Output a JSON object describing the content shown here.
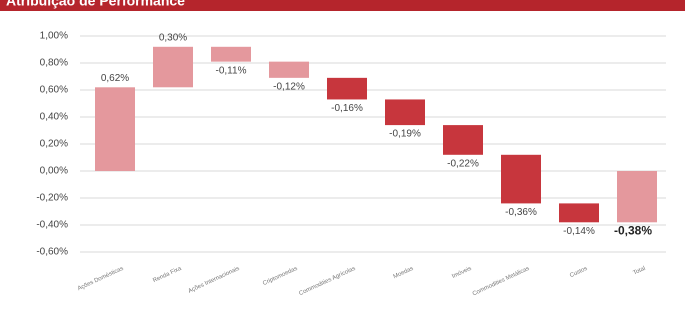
{
  "chart_data": {
    "type": "waterfall",
    "title": "Atribuição de Performance",
    "categories": [
      "Ações Domésticas",
      "Renda Fixa",
      "Ações Internacionais",
      "Criptomoedas",
      "Commodities Agrícolas",
      "Moedas",
      "Imóveis",
      "Commodities Metálicas",
      "Custos",
      "Total"
    ],
    "values": [
      0.62,
      0.3,
      -0.11,
      -0.12,
      -0.16,
      -0.19,
      -0.22,
      -0.36,
      -0.14,
      -0.38
    ],
    "value_labels": [
      "0,62%",
      "0,30%",
      "-0,11%",
      "-0,12%",
      "-0,16%",
      "-0,19%",
      "-0,22%",
      "-0,36%",
      "-0,14%",
      "-0,38%"
    ],
    "measures": [
      "relative",
      "relative",
      "relative",
      "relative",
      "relative",
      "relative",
      "relative",
      "relative",
      "relative",
      "total"
    ],
    "colors": [
      "#e4989d",
      "#e4989d",
      "#e4989d",
      "#e4989d",
      "#c7363d",
      "#c7363d",
      "#c7363d",
      "#c7363d",
      "#c7363d",
      "#e4989d"
    ],
    "ylim": [
      -0.6,
      1.0
    ],
    "yticks": [
      {
        "value": 1.0,
        "label": "1,00%"
      },
      {
        "value": 0.8,
        "label": "0,80%"
      },
      {
        "value": 0.6,
        "label": "0,60%"
      },
      {
        "value": 0.4,
        "label": "0,40%"
      },
      {
        "value": 0.2,
        "label": "0,20%"
      },
      {
        "value": 0,
        "label": "0,00%"
      },
      {
        "value": -0.2,
        "label": "-0,20%"
      },
      {
        "value": -0.4,
        "label": "-0,40%"
      },
      {
        "value": -0.6,
        "label": "-0,60%"
      }
    ],
    "grid": true,
    "banner_color": "#b5252c"
  }
}
